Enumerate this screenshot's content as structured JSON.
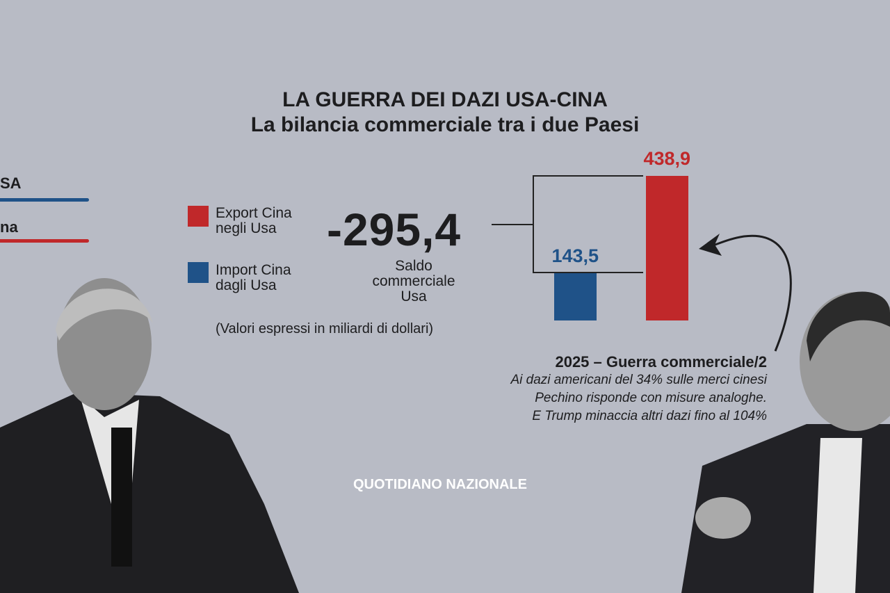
{
  "title": "LA GUERRA DEI DAZI USA-CINA",
  "subtitle": "La bilancia commerciale tra i due Paesi",
  "left_legend": {
    "usa": "SA",
    "cina": "na"
  },
  "legend": [
    {
      "label_line1": "Export Cina",
      "label_line2": "negli Usa",
      "color": "#c0282a"
    },
    {
      "label_line1": "Import Cina",
      "label_line2": "dagli Usa",
      "color": "#1f5288"
    }
  ],
  "balance": {
    "value": "-295,4",
    "label_line1": "Saldo",
    "label_line2": "commerciale",
    "label_line3": "Usa"
  },
  "units_note": "(Valori espressi in miliardi di dollari)",
  "annotation": {
    "heading": "2025 – Guerra commerciale/2",
    "line1": "Ai dazi americani del 34% sulle merci cinesi",
    "line2": "Pechino risponde con misure analoghe.",
    "line3": "E Trump minaccia altri dazi fino al 104%"
  },
  "brand": "QUOTIDIANO NAZIONALE",
  "chart_data": {
    "type": "bar",
    "title": "La bilancia commerciale tra i due Paesi",
    "categories": [
      "Import Cina dagli Usa",
      "Export Cina negli Usa"
    ],
    "values": [
      143.5,
      438.9
    ],
    "value_labels": [
      "143,5",
      "438,9"
    ],
    "colors": [
      "#1f5288",
      "#c0282a"
    ],
    "unit": "miliardi di dollari",
    "ylim": [
      0,
      438.9
    ]
  }
}
